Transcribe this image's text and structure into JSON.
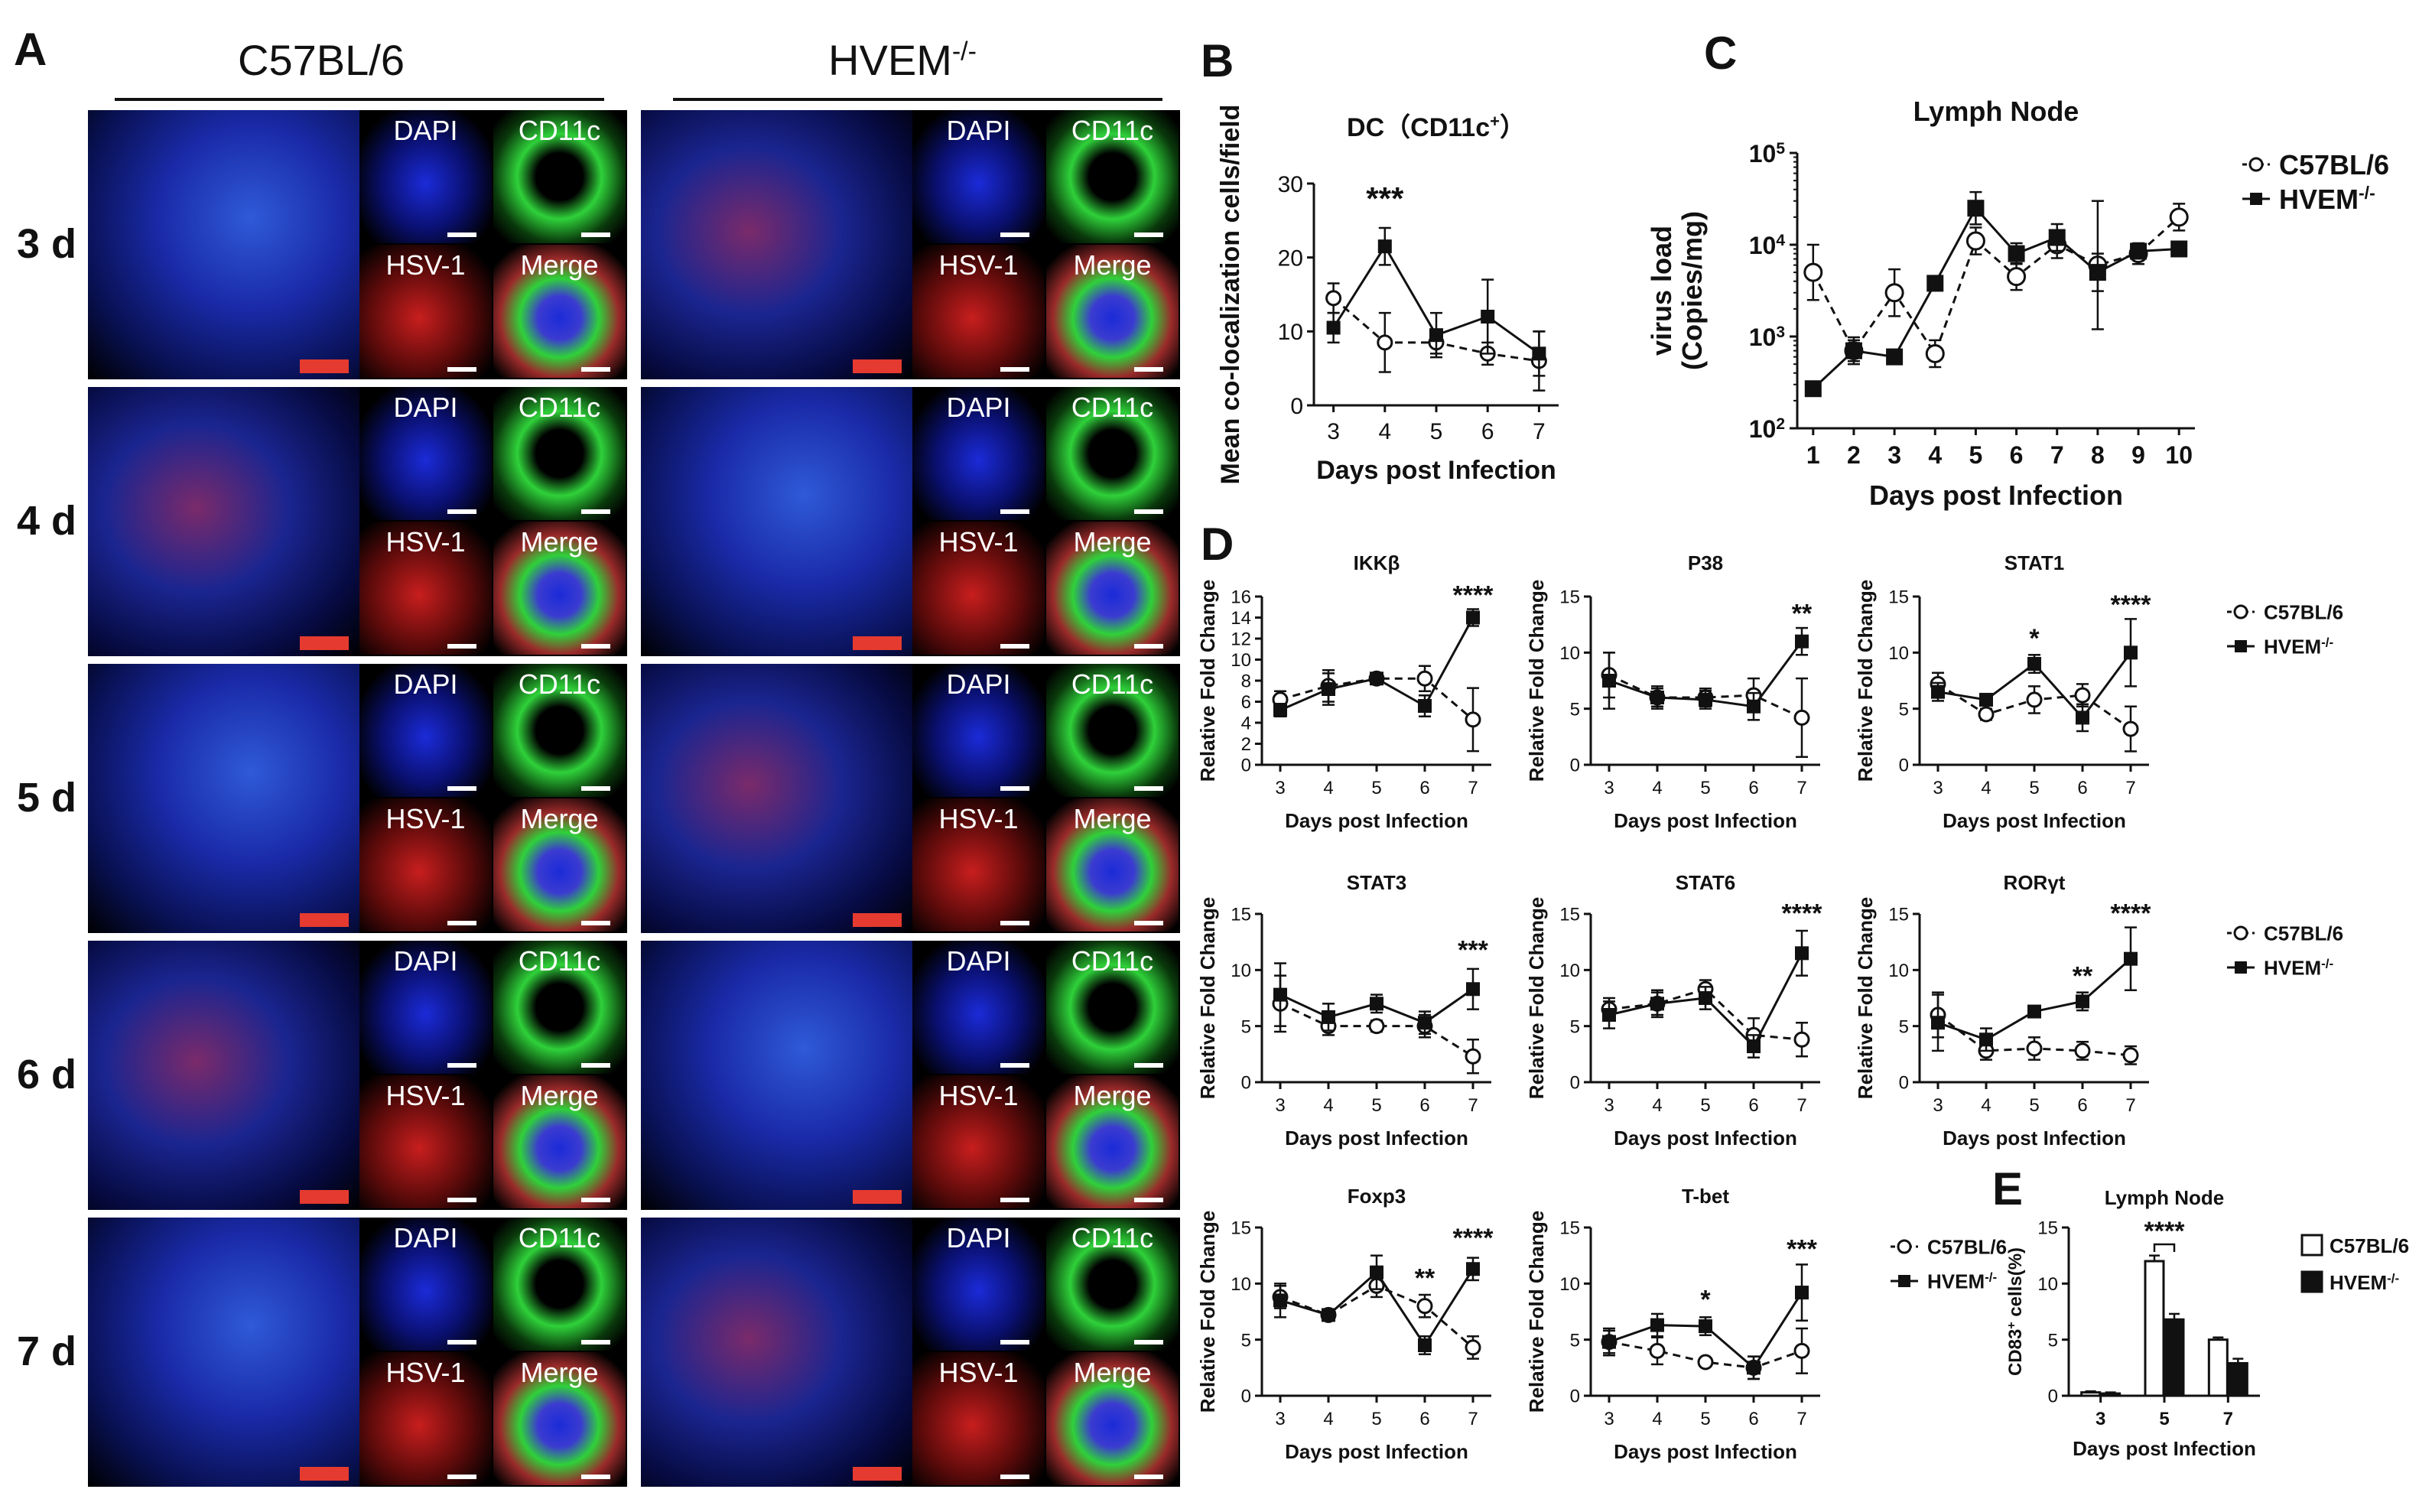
{
  "panelA": {
    "letter": "A",
    "strains": [
      "C57BL/6",
      "HVEM"
    ],
    "strain_sup": "-/-",
    "days": [
      "3 d",
      "4 d",
      "5 d",
      "6 d",
      "7 d"
    ],
    "tiles": [
      "DAPI",
      "CD11c",
      "HSV-1",
      "Merge"
    ]
  },
  "line_panels": [
    {
      "id": "B",
      "letter": "B",
      "title": "DC（CD11c",
      "title_sup": "+",
      "title_end": "）",
      "ylabel": "Mean co-localization cells/field",
      "xlabel": "Days post Infection",
      "x": [
        3,
        4,
        5,
        6,
        7
      ],
      "yticks": [
        0,
        10,
        20,
        30
      ],
      "ylim": [
        0,
        30
      ],
      "series": [
        {
          "name": "C57BL/6",
          "style": "open-dashed",
          "values": [
            14.5,
            8.5,
            8.5,
            7,
            6
          ],
          "err": [
            2,
            4,
            1.5,
            1.5,
            4
          ]
        },
        {
          "name": "HVEM-/-",
          "style": "filled-solid",
          "values": [
            10.5,
            21.5,
            9.5,
            12,
            7
          ],
          "err": [
            2,
            2.5,
            3,
            5,
            3
          ]
        }
      ],
      "annotations": [
        {
          "x": 4,
          "y": 26.5,
          "text": "***"
        }
      ]
    },
    {
      "id": "C",
      "letter": "C",
      "title": "Lymph Node",
      "ylabel": "virus load",
      "ylabel2": "(Copies/mg)",
      "xlabel": "Days post Infection",
      "log": true,
      "x": [
        1,
        2,
        3,
        4,
        5,
        6,
        7,
        8,
        9,
        10
      ],
      "ylim": [
        100,
        100000
      ],
      "ytick_values": [
        100,
        1000,
        10000,
        100000
      ],
      "ytick_base": "10",
      "ytick_exps": [
        "2",
        "3",
        "4",
        "5"
      ],
      "series": [
        {
          "name": "C57BL/6",
          "style": "open-dashed",
          "values": [
            5000,
            700,
            3000,
            650,
            11000,
            4500,
            10000,
            6000,
            8000,
            20000
          ],
          "errf": [
            2,
            1.4,
            1.8,
            1.4,
            1.4,
            1.4,
            1.4,
            5,
            1.3,
            1.4
          ]
        },
        {
          "name": "HVEM-/-",
          "style": "filled-solid",
          "values": [
            270,
            700,
            600,
            3800,
            25000,
            8000,
            12000,
            5000,
            8500,
            9000
          ],
          "errf": [
            1.2,
            1.3,
            1.2,
            1.2,
            1.5,
            1.3,
            1.4,
            1.6,
            1.2,
            1.2
          ]
        }
      ],
      "legend": [
        "C57BL/6",
        "HVEM"
      ]
    },
    {
      "id": "D1",
      "letter": "D",
      "title": "IKKβ",
      "ylabel": "Relative Fold Change",
      "xlabel": "Days post Infection",
      "x": [
        3,
        4,
        5,
        6,
        7
      ],
      "yticks": [
        0,
        2,
        4,
        6,
        8,
        10,
        12,
        14,
        16
      ],
      "ylim": [
        0,
        16
      ],
      "series": [
        {
          "name": "C57BL/6",
          "style": "open-dashed",
          "values": [
            6.2,
            7.5,
            8.2,
            8.2,
            4.3
          ],
          "err": [
            0.8,
            1.5,
            0.5,
            1.2,
            3
          ]
        },
        {
          "name": "HVEM-/-",
          "style": "filled-solid",
          "values": [
            5.2,
            7.2,
            8.2,
            5.6,
            14
          ],
          "err": [
            0.6,
            1.5,
            0.5,
            1,
            0.8
          ]
        }
      ],
      "annotations": [
        {
          "x": 7,
          "y": 15.3,
          "text": "****"
        }
      ]
    },
    {
      "id": "D2",
      "title": "P38",
      "ylabel": "Relative Fold Change",
      "xlabel": "Days post Infection",
      "x": [
        3,
        4,
        5,
        6,
        7
      ],
      "yticks": [
        0,
        5,
        10,
        15
      ],
      "ylim": [
        0,
        15
      ],
      "series": [
        {
          "name": "C57BL/6",
          "style": "open-dashed",
          "values": [
            8,
            6,
            6,
            6.2,
            4.2
          ],
          "err": [
            2,
            1,
            0.8,
            1.5,
            3.5
          ]
        },
        {
          "name": "HVEM-/-",
          "style": "filled-solid",
          "values": [
            7.5,
            6,
            5.8,
            5.2,
            11
          ],
          "err": [
            2.5,
            0.8,
            0.8,
            1.2,
            1.2
          ]
        }
      ],
      "annotations": [
        {
          "x": 7,
          "y": 12.7,
          "text": "**"
        }
      ]
    },
    {
      "id": "D3",
      "title": "STAT1",
      "ylabel": "Relative Fold Change",
      "xlabel": "Days post Infection",
      "x": [
        3,
        4,
        5,
        6,
        7
      ],
      "yticks": [
        0,
        5,
        10,
        15
      ],
      "ylim": [
        0,
        15
      ],
      "series": [
        {
          "name": "C57BL/6",
          "style": "open-dashed",
          "values": [
            7.2,
            4.5,
            5.8,
            6.2,
            3.2
          ],
          "err": [
            1,
            0.5,
            1.2,
            1,
            2
          ]
        },
        {
          "name": "HVEM-/-",
          "style": "filled-solid",
          "values": [
            6.5,
            5.8,
            9,
            4.2,
            10
          ],
          "err": [
            0.8,
            0.3,
            0.8,
            1.2,
            3
          ]
        }
      ],
      "annotations": [
        {
          "x": 5,
          "y": 10.5,
          "text": "*"
        },
        {
          "x": 7,
          "y": 13.5,
          "text": "****"
        }
      ],
      "legend": [
        "C57BL/6",
        "HVEM"
      ]
    },
    {
      "id": "D4",
      "title": "STAT3",
      "ylabel": "Relative Fold Change",
      "xlabel": "Days post Infection",
      "x": [
        3,
        4,
        5,
        6,
        7
      ],
      "yticks": [
        0,
        5,
        10,
        15
      ],
      "ylim": [
        0,
        15
      ],
      "series": [
        {
          "name": "C57BL/6",
          "style": "open-dashed",
          "values": [
            7,
            5,
            5,
            5,
            2.3
          ],
          "err": [
            2.5,
            0.8,
            0.5,
            1,
            1.5
          ]
        },
        {
          "name": "HVEM-/-",
          "style": "filled-solid",
          "values": [
            7.8,
            5.8,
            7,
            5.3,
            8.3
          ],
          "err": [
            2.8,
            1.2,
            0.8,
            1,
            1.8
          ]
        }
      ],
      "annotations": [
        {
          "x": 7,
          "y": 11,
          "text": "***"
        }
      ]
    },
    {
      "id": "D5",
      "title": "STAT6",
      "ylabel": "Relative Fold Change",
      "xlabel": "Days post Infection",
      "x": [
        3,
        4,
        5,
        6,
        7
      ],
      "yticks": [
        0,
        5,
        10,
        15
      ],
      "ylim": [
        0,
        15
      ],
      "series": [
        {
          "name": "C57BL/6",
          "style": "open-dashed",
          "values": [
            6.5,
            7,
            8.3,
            4.2,
            3.8
          ],
          "err": [
            1,
            1.2,
            0.8,
            1.5,
            1.5
          ]
        },
        {
          "name": "HVEM-/-",
          "style": "filled-solid",
          "values": [
            6,
            7,
            7.5,
            3.2,
            11.5
          ],
          "err": [
            1.2,
            1,
            1,
            1,
            2
          ]
        }
      ],
      "annotations": [
        {
          "x": 7,
          "y": 14.3,
          "text": "****"
        }
      ]
    },
    {
      "id": "D6",
      "title": "RORγt",
      "ylabel": "Relative Fold Change",
      "xlabel": "Days post Infection",
      "x": [
        3,
        4,
        5,
        6,
        7
      ],
      "yticks": [
        0,
        5,
        10,
        15
      ],
      "ylim": [
        0,
        15
      ],
      "series": [
        {
          "name": "C57BL/6",
          "style": "open-dashed",
          "values": [
            6,
            2.8,
            3,
            2.8,
            2.4
          ],
          "err": [
            2,
            0.8,
            1,
            0.8,
            0.8
          ]
        },
        {
          "name": "HVEM-/-",
          "style": "filled-solid",
          "values": [
            5.3,
            3.8,
            6.3,
            7.2,
            11
          ],
          "err": [
            2.5,
            1,
            0.3,
            0.8,
            2.8
          ]
        }
      ],
      "annotations": [
        {
          "x": 6,
          "y": 8.7,
          "text": "**"
        },
        {
          "x": 7,
          "y": 14.3,
          "text": "****"
        }
      ],
      "legend": [
        "C57BL/6",
        "HVEM"
      ]
    },
    {
      "id": "D7",
      "title": "Foxp3",
      "ylabel": "Relative Fold Change",
      "xlabel": "Days post Infection",
      "x": [
        3,
        4,
        5,
        6,
        7
      ],
      "yticks": [
        0,
        5,
        10,
        15
      ],
      "ylim": [
        0,
        15
      ],
      "series": [
        {
          "name": "C57BL/6",
          "style": "open-dashed",
          "values": [
            8.8,
            7.2,
            9.8,
            8,
            4.3
          ],
          "err": [
            1,
            0.5,
            1,
            1,
            1
          ]
        },
        {
          "name": "HVEM-/-",
          "style": "filled-solid",
          "values": [
            8.5,
            7.2,
            11,
            4.5,
            11.3
          ],
          "err": [
            1.5,
            0.5,
            1.5,
            0.8,
            1
          ]
        }
      ],
      "annotations": [
        {
          "x": 6,
          "y": 9.7,
          "text": "**"
        },
        {
          "x": 7,
          "y": 13.3,
          "text": "****"
        }
      ]
    },
    {
      "id": "D8",
      "title": "T-bet",
      "ylabel": "Relative Fold Change",
      "xlabel": "Days post Infection",
      "x": [
        3,
        4,
        5,
        6,
        7
      ],
      "yticks": [
        0,
        5,
        10,
        15
      ],
      "ylim": [
        0,
        15
      ],
      "series": [
        {
          "name": "C57BL/6",
          "style": "open-dashed",
          "values": [
            4.8,
            4,
            3,
            2.5,
            4
          ],
          "err": [
            1,
            1.2,
            0.3,
            1,
            2
          ]
        },
        {
          "name": "HVEM-/-",
          "style": "filled-solid",
          "values": [
            4.8,
            6.3,
            6.2,
            2.5,
            9.2
          ],
          "err": [
            1.2,
            1,
            0.8,
            1,
            2.5
          ]
        }
      ],
      "annotations": [
        {
          "x": 5,
          "y": 7.8,
          "text": "*"
        },
        {
          "x": 7,
          "y": 12.3,
          "text": "***"
        }
      ],
      "legend": [
        "C57BL/6",
        "HVEM"
      ]
    }
  ],
  "bar_panel": {
    "id": "E",
    "letter": "E",
    "title": "Lymph Node",
    "ylabel": "CD83",
    "ylabel_sup": "+",
    "ylabel_end": " cells(%)",
    "xlabel": "Days post Infection",
    "categories": [
      "3",
      "5",
      "7"
    ],
    "yticks": [
      0,
      5,
      10,
      15
    ],
    "ylim": [
      0,
      15
    ],
    "series": [
      {
        "name": "C57BL/6",
        "style": "open",
        "values": [
          0.3,
          12,
          5
        ],
        "err": [
          0.1,
          0.5,
          0.2
        ]
      },
      {
        "name": "HVEM-/-",
        "style": "filled",
        "values": [
          0.2,
          6.8,
          2.9
        ],
        "err": [
          0.1,
          0.5,
          0.4
        ]
      }
    ],
    "annotation": "****",
    "legend": [
      "C57BL/6",
      "HVEM"
    ]
  },
  "legend_sup": "-/-",
  "colors": {
    "ink": "#111111",
    "scale_bar": "#e53a2f",
    "dapi": "#1b2bd8",
    "cd11c": "#2fd13a",
    "hsv": "#c81e1e"
  }
}
